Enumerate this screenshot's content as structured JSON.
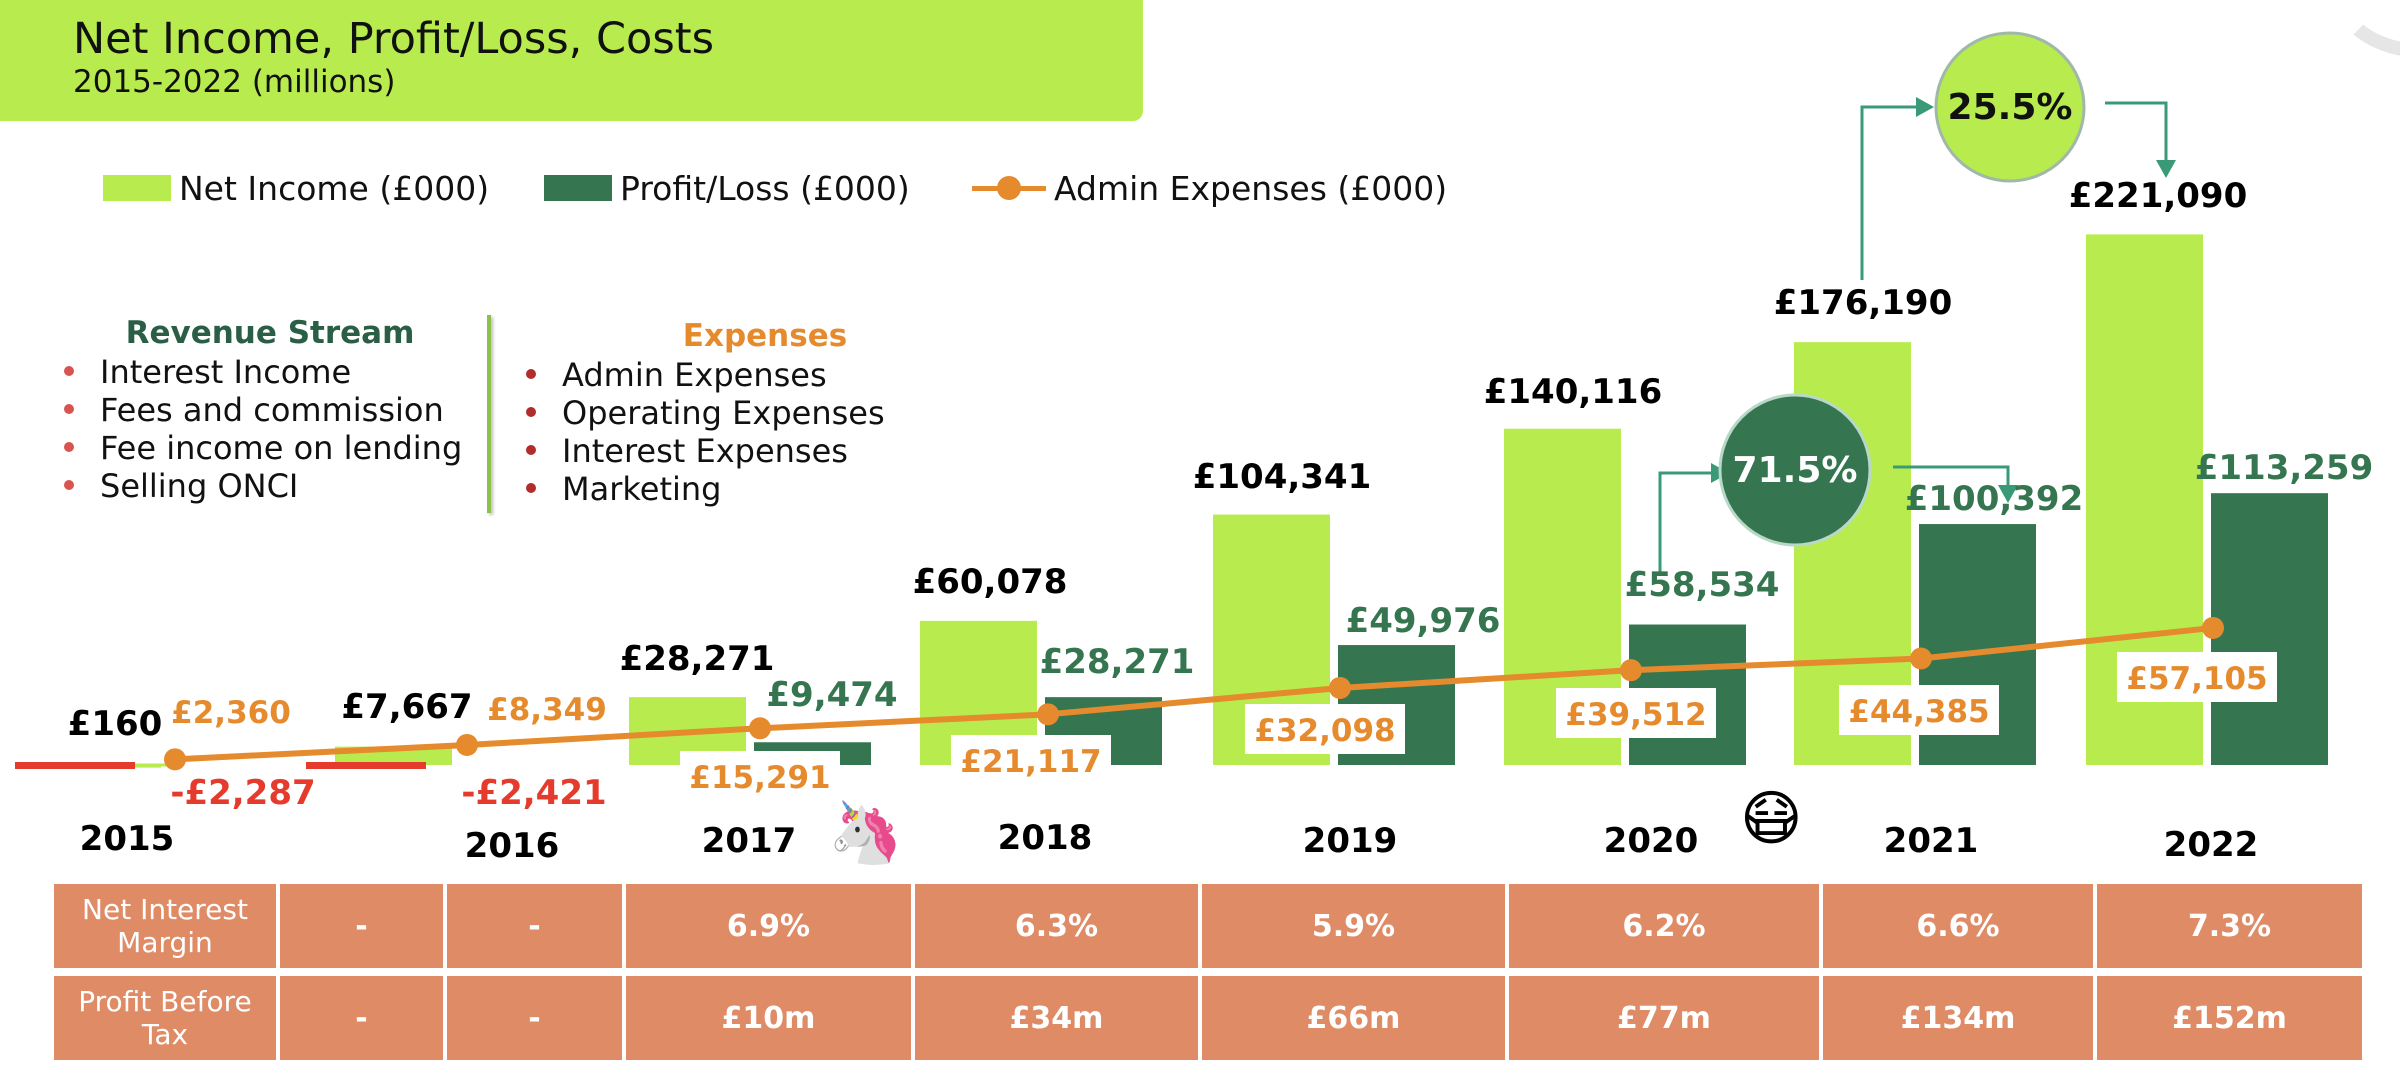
{
  "header": {
    "title": "Net Income, Profit/Loss, Costs",
    "subtitle": "2015-2022 (millions)"
  },
  "legend": {
    "net_income": "Net Income (£000)",
    "profit_loss": "Profit/Loss  (£000)",
    "admin_expenses": "Admin Expenses  (£000)"
  },
  "revenue_stream": {
    "heading": "Revenue Stream",
    "items": [
      "Interest Income",
      "Fees and commission",
      "Fee income on lending",
      "Selling ONCI"
    ]
  },
  "expenses": {
    "heading": "Expenses",
    "items": [
      "Admin Expenses",
      "Operating Expenses",
      "Interest Expenses",
      "Marketing"
    ]
  },
  "colors": {
    "net_income": "#b8ec4e",
    "profit_loss": "#357650",
    "admin_expenses": "#e58a2d",
    "negative": "#e53b2c",
    "table_fill": "#de8b66",
    "revenue_heading": "#2a5e45",
    "bullet_revenue": "#d9534f",
    "bullet_expenses": "#b22c2c"
  },
  "icons": {
    "unicorn": "🦄",
    "mask": "😷"
  },
  "chart_data": {
    "type": "bar",
    "title": "Net Income, Profit/Loss, Costs",
    "subtitle": "2015-2022 (millions)",
    "categories": [
      "2015",
      "2016",
      "2017",
      "2018",
      "2019",
      "2020",
      "2021",
      "2022"
    ],
    "series": [
      {
        "name": "Net Income (£000)",
        "type": "bar",
        "values": [
          160,
          7667,
          28271,
          60078,
          104341,
          140116,
          176190,
          221090
        ],
        "labels": [
          "£160",
          "£7,667",
          "£28,271",
          "£60,078",
          "£104,341",
          "£140,116",
          "£176,190",
          "£221,090"
        ]
      },
      {
        "name": "Profit/Loss  (£000)",
        "type": "bar",
        "values": [
          -2287,
          -2421,
          9474,
          28271,
          49976,
          58534,
          100392,
          113259
        ],
        "labels": [
          "-£2,287",
          "-£2,421",
          "£9,474",
          "£28,271",
          "£49,976",
          "£58,534",
          "£100,392",
          "£113,259"
        ]
      },
      {
        "name": "Admin Expenses  (£000)",
        "type": "line",
        "values": [
          2360,
          8349,
          15291,
          21117,
          32098,
          39512,
          44385,
          57105
        ],
        "labels": [
          "£2,360",
          "£8,349",
          "£15,291",
          "£21,117",
          "£32,098",
          "£39,512",
          "£44,385",
          "£57,105"
        ]
      }
    ],
    "annotations": [
      {
        "text": "71.5%",
        "from": "2020",
        "to": "2021",
        "series": "Profit/Loss  (£000)"
      },
      {
        "text": "25.5%",
        "from": "2021",
        "to": "2022",
        "series": "Net Income (£000)"
      }
    ],
    "ylim": [
      -5000,
      230000
    ],
    "xlabel": "",
    "ylabel": "",
    "grid": false
  },
  "table": {
    "rows": [
      {
        "label": "Net Interest Margin",
        "values": [
          "-",
          "-",
          "6.9%",
          "6.3%",
          "5.9%",
          "6.2%",
          "6.6%",
          "7.3%"
        ]
      },
      {
        "label": "Profit Before Tax",
        "values": [
          "-",
          "-",
          "£10m",
          "£34m",
          "£66m",
          "£77m",
          "£134m",
          "£152m"
        ]
      }
    ]
  }
}
